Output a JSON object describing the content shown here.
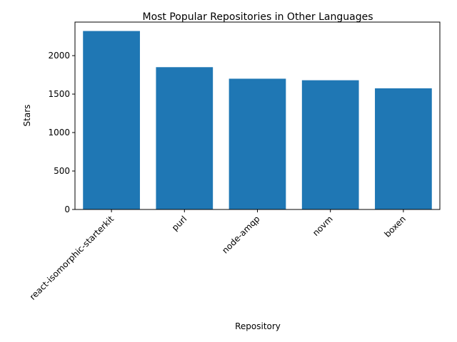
{
  "chart_data": {
    "type": "bar",
    "title": "Most Popular Repositories in Other Languages",
    "xlabel": "Repository",
    "ylabel": "Stars",
    "categories": [
      "react-isomorphic-starterkit",
      "purl",
      "node-amqp",
      "novm",
      "boxen"
    ],
    "values": [
      2320,
      1850,
      1700,
      1680,
      1575
    ],
    "ylim": [
      0,
      2436
    ],
    "yticks": [
      0,
      500,
      1000,
      1500,
      2000
    ],
    "ytick_labels": [
      "0",
      "500",
      "1000",
      "1500",
      "2000"
    ],
    "bar_color": "#1f77b4",
    "grid": false,
    "legend": false
  }
}
